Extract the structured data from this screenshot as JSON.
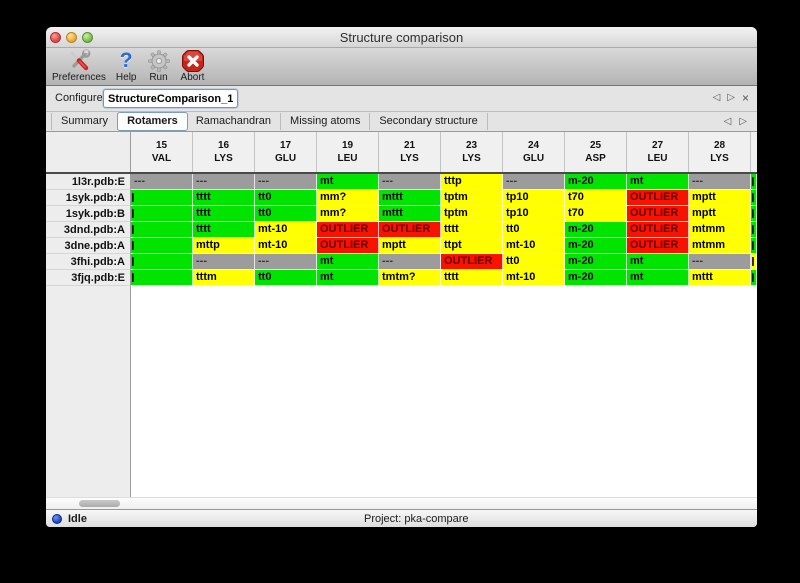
{
  "window": {
    "title": "Structure comparison"
  },
  "toolbar": {
    "items": [
      {
        "label": "Preferences",
        "icon": "tools-icon"
      },
      {
        "label": "Help",
        "icon": "question-icon"
      },
      {
        "label": "Run",
        "icon": "gear-icon"
      },
      {
        "label": "Abort",
        "icon": "stop-icon"
      }
    ]
  },
  "configure": {
    "label": "Configure",
    "value": "StructureComparison_1",
    "nav_prev": "◁",
    "nav_next": "▷",
    "nav_close": "×"
  },
  "tabs": [
    {
      "label": "Summary",
      "selected": false
    },
    {
      "label": "Rotamers",
      "selected": true
    },
    {
      "label": "Ramachandran",
      "selected": false
    },
    {
      "label": "Missing atoms",
      "selected": false
    },
    {
      "label": "Secondary structure",
      "selected": false
    }
  ],
  "tabnav": {
    "prev": "◁",
    "next": "▷"
  },
  "colors": {
    "ok": "#00e400",
    "warn": "#ffff00",
    "outlier": "#f81200",
    "absent": "#9c9c9c",
    "outlier_text": "#5e0000",
    "absent_text": "#383838",
    "default_text": "#000000"
  },
  "table": {
    "columns": [
      {
        "num": "15",
        "res": "VAL"
      },
      {
        "num": "16",
        "res": "LYS"
      },
      {
        "num": "17",
        "res": "GLU"
      },
      {
        "num": "19",
        "res": "LEU"
      },
      {
        "num": "21",
        "res": "LYS"
      },
      {
        "num": "23",
        "res": "LYS"
      },
      {
        "num": "24",
        "res": "GLU"
      },
      {
        "num": "25",
        "res": "ASP"
      },
      {
        "num": "27",
        "res": "LEU"
      },
      {
        "num": "28",
        "res": "LYS"
      }
    ],
    "rows": [
      {
        "label": "1l3r.pdb:E",
        "cells": [
          {
            "t": "---",
            "c": "absent"
          },
          {
            "t": "---",
            "c": "absent"
          },
          {
            "t": "---",
            "c": "absent"
          },
          {
            "t": "mt",
            "c": "ok"
          },
          {
            "t": "---",
            "c": "absent"
          },
          {
            "t": "tttp",
            "c": "warn"
          },
          {
            "t": "---",
            "c": "absent"
          },
          {
            "t": "m-20",
            "c": "ok"
          },
          {
            "t": "mt",
            "c": "ok"
          },
          {
            "t": "---",
            "c": "absent"
          }
        ],
        "overflow": "ok"
      },
      {
        "label": "1syk.pdb:A",
        "cells": [
          {
            "t": "",
            "c": "ok",
            "clip": true
          },
          {
            "t": "tttt",
            "c": "ok"
          },
          {
            "t": "tt0",
            "c": "ok"
          },
          {
            "t": "mm?",
            "c": "warn"
          },
          {
            "t": "mttt",
            "c": "ok"
          },
          {
            "t": "tptm",
            "c": "warn"
          },
          {
            "t": "tp10",
            "c": "warn"
          },
          {
            "t": "t70",
            "c": "warn"
          },
          {
            "t": "OUTLIER",
            "c": "outlier"
          },
          {
            "t": "mptt",
            "c": "warn"
          }
        ],
        "overflow": "ok"
      },
      {
        "label": "1syk.pdb:B",
        "cells": [
          {
            "t": "",
            "c": "ok",
            "clip": true
          },
          {
            "t": "tttt",
            "c": "ok"
          },
          {
            "t": "tt0",
            "c": "ok"
          },
          {
            "t": "mm?",
            "c": "warn"
          },
          {
            "t": "mttt",
            "c": "ok"
          },
          {
            "t": "tptm",
            "c": "warn"
          },
          {
            "t": "tp10",
            "c": "warn"
          },
          {
            "t": "t70",
            "c": "warn"
          },
          {
            "t": "OUTLIER",
            "c": "outlier"
          },
          {
            "t": "mptt",
            "c": "warn"
          }
        ],
        "overflow": "ok"
      },
      {
        "label": "3dnd.pdb:A",
        "cells": [
          {
            "t": "",
            "c": "ok",
            "clip": true
          },
          {
            "t": "tttt",
            "c": "ok"
          },
          {
            "t": "mt-10",
            "c": "warn"
          },
          {
            "t": "OUTLIER",
            "c": "outlier"
          },
          {
            "t": "OUTLIER",
            "c": "outlier"
          },
          {
            "t": "tttt",
            "c": "warn"
          },
          {
            "t": "tt0",
            "c": "warn"
          },
          {
            "t": "m-20",
            "c": "ok"
          },
          {
            "t": "OUTLIER",
            "c": "outlier"
          },
          {
            "t": "mtmm",
            "c": "warn"
          }
        ],
        "overflow": "ok"
      },
      {
        "label": "3dne.pdb:A",
        "cells": [
          {
            "t": "",
            "c": "ok",
            "clip": true
          },
          {
            "t": "mttp",
            "c": "warn"
          },
          {
            "t": "mt-10",
            "c": "warn"
          },
          {
            "t": "OUTLIER",
            "c": "outlier"
          },
          {
            "t": "mptt",
            "c": "warn"
          },
          {
            "t": "ttpt",
            "c": "warn"
          },
          {
            "t": "mt-10",
            "c": "warn"
          },
          {
            "t": "m-20",
            "c": "ok"
          },
          {
            "t": "OUTLIER",
            "c": "outlier"
          },
          {
            "t": "mtmm",
            "c": "warn"
          }
        ],
        "overflow": "ok"
      },
      {
        "label": "3fhi.pdb:A",
        "cells": [
          {
            "t": "",
            "c": "ok",
            "clip": true
          },
          {
            "t": "---",
            "c": "absent"
          },
          {
            "t": "---",
            "c": "absent"
          },
          {
            "t": "mt",
            "c": "ok"
          },
          {
            "t": "---",
            "c": "absent"
          },
          {
            "t": "OUTLIER",
            "c": "outlier"
          },
          {
            "t": "tt0",
            "c": "warn"
          },
          {
            "t": "m-20",
            "c": "ok"
          },
          {
            "t": "mt",
            "c": "ok"
          },
          {
            "t": "---",
            "c": "absent"
          }
        ],
        "overflow": "warn"
      },
      {
        "label": "3fjq.pdb:E",
        "cells": [
          {
            "t": "",
            "c": "ok",
            "clip": true
          },
          {
            "t": "tttm",
            "c": "warn"
          },
          {
            "t": "tt0",
            "c": "ok"
          },
          {
            "t": "mt",
            "c": "ok"
          },
          {
            "t": "tmtm?",
            "c": "warn"
          },
          {
            "t": "tttt",
            "c": "warn"
          },
          {
            "t": "mt-10",
            "c": "warn"
          },
          {
            "t": "m-20",
            "c": "ok"
          },
          {
            "t": "mt",
            "c": "ok"
          },
          {
            "t": "mttt",
            "c": "warn"
          }
        ],
        "overflow": "ok"
      }
    ]
  },
  "status": {
    "state": "Idle",
    "project": "Project: pka-compare"
  }
}
